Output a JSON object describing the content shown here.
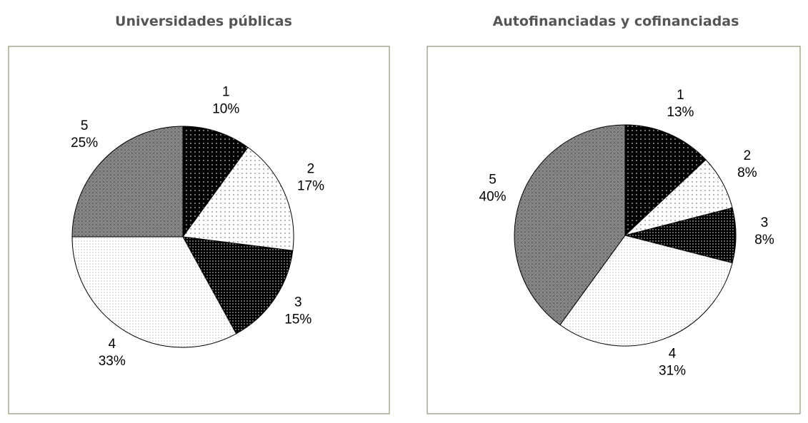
{
  "chart_data": [
    {
      "type": "pie",
      "title": "Universidades públicas",
      "categories": [
        "1",
        "2",
        "3",
        "4",
        "5"
      ],
      "values": [
        10,
        17,
        15,
        33,
        25
      ],
      "value_labels": [
        "10%",
        "17%",
        "15%",
        "33%",
        "25%"
      ],
      "colors": [
        "#000000",
        "#ffffff",
        "#000000",
        "#ffffff",
        "#8a8a8a"
      ]
    },
    {
      "type": "pie",
      "title": "Autofinanciadas y cofinanciadas",
      "categories": [
        "1",
        "2",
        "3",
        "4",
        "5"
      ],
      "values": [
        13,
        8,
        8,
        31,
        40
      ],
      "value_labels": [
        "13%",
        "8%",
        "8%",
        "31%",
        "40%"
      ],
      "colors": [
        "#000000",
        "#ffffff",
        "#000000",
        "#ffffff",
        "#8a8a8a"
      ]
    }
  ]
}
